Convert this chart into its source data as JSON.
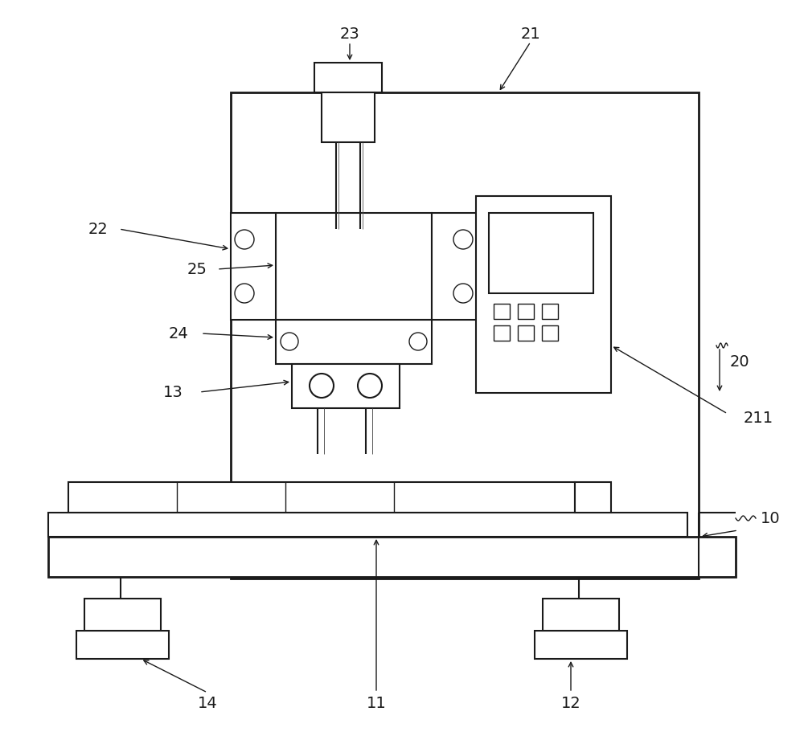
{
  "bg_color": "#ffffff",
  "lw": 1.5,
  "lw_thin": 1.0,
  "fs": 14
}
